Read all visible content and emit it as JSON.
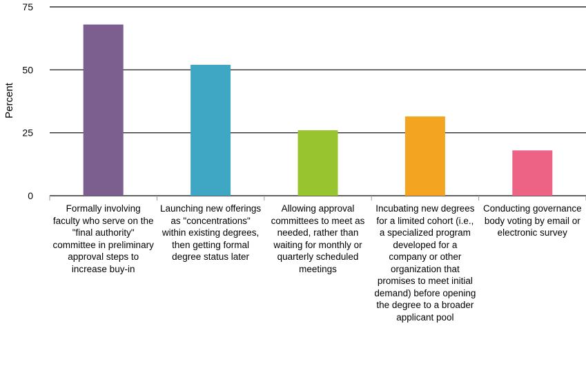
{
  "chart_data": {
    "type": "bar",
    "ylabel": "Percent",
    "ylim": [
      0,
      75
    ],
    "yticks": [
      "0",
      "25",
      "50",
      "75"
    ],
    "grid": true,
    "categories": [
      "Formally involving faculty who serve on the \"final authority\" committee in preliminary approval steps to increase buy-in",
      "Launching new offerings as \"concentrations\" within existing degrees, then getting formal degree status later",
      "Allowing approval committees to meet as needed, rather than waiting for monthly or quarterly scheduled meetings",
      "Incubating new degrees for a limited cohort (i.e., a specialized program developed for a company or other organization that promises to meet initial demand) before opening the degree to a broader applicant pool",
      "Conducting governance body voting by email or electronic survey"
    ],
    "values": [
      68,
      52,
      26,
      31.5,
      18
    ],
    "colors": [
      "#7c5f8f",
      "#3fa6c4",
      "#97c42f",
      "#f3a521",
      "#ec6385"
    ]
  }
}
